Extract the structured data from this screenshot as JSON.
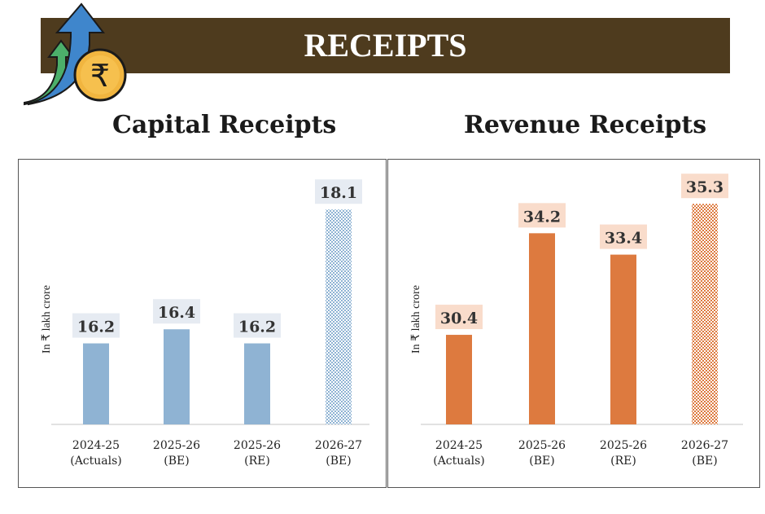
{
  "banner": {
    "title": "RECEIPTS",
    "background": "#4e3b1e"
  },
  "logo": {
    "icon": "rupee-coin-with-up-arrows-icon"
  },
  "chart_data": [
    {
      "type": "bar",
      "title": "Capital Receipts",
      "ylabel": "In ₹ lakh crore",
      "categories": [
        [
          "2024-25",
          "(Actuals)"
        ],
        [
          "2025-26",
          "(BE)"
        ],
        [
          "2025-26",
          "(RE)"
        ],
        [
          "2026-27",
          "(BE)"
        ]
      ],
      "values": [
        16.2,
        16.4,
        16.2,
        18.1
      ],
      "labels": [
        "16.2",
        "16.4",
        "16.2",
        "18.1"
      ],
      "ylim": [
        15.05,
        18.75
      ],
      "grid": false,
      "color": "#8fb3d3",
      "label_bg": "#e6ebf2",
      "hatched_last": true
    },
    {
      "type": "bar",
      "title": "Revenue Receipts",
      "ylabel": "In ₹ lakh crore",
      "categories": [
        [
          "2024-25",
          "(Actuals)"
        ],
        [
          "2025-26",
          "(BE)"
        ],
        [
          "2025-26",
          "(RE)"
        ],
        [
          "2026-27",
          "(BE)"
        ]
      ],
      "values": [
        30.4,
        34.2,
        33.4,
        35.3
      ],
      "labels": [
        "30.4",
        "34.2",
        "33.4",
        "35.3"
      ],
      "ylim": [
        27.05,
        36.8
      ],
      "grid": false,
      "color": "#dd7a3f",
      "label_bg": "#f9dccb",
      "hatched_last": true
    }
  ]
}
